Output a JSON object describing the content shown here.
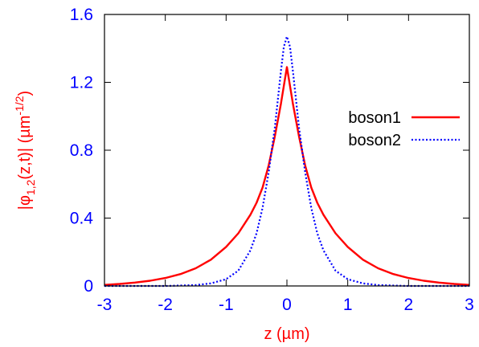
{
  "chart_data": {
    "type": "line",
    "xlabel": "z (µm)",
    "ylabel_main": "|φ",
    "ylabel_sub": "1,2",
    "ylabel_rest": "(z,t)| (µm",
    "ylabel_sup": "-1/2",
    "ylabel_end": ")",
    "xlim": [
      -3,
      3
    ],
    "ylim": [
      0,
      1.6
    ],
    "xticks": [
      -3,
      -2,
      -1,
      0,
      1,
      2,
      3
    ],
    "xtick_labels": [
      "-3",
      "-2",
      "-1",
      "0",
      "1",
      "2",
      "3"
    ],
    "yticks": [
      0,
      0.4,
      0.8,
      1.2,
      1.6
    ],
    "ytick_labels": [
      "0",
      "0.4",
      "0.8",
      "1.2",
      "1.6"
    ],
    "grid": false,
    "legend_position": "right",
    "colors": {
      "tick_text": "#0000ff",
      "axis_text": "#ff0000",
      "frame": "#000000"
    },
    "series": [
      {
        "name": "boson1",
        "color": "#ff0000",
        "style": "solid",
        "x": [
          -3.0,
          -2.75,
          -2.5,
          -2.25,
          -2.0,
          -1.75,
          -1.5,
          -1.25,
          -1.0,
          -0.8,
          -0.6,
          -0.5,
          -0.4,
          -0.3,
          -0.2,
          -0.1,
          -0.05,
          0.0,
          0.05,
          0.1,
          0.2,
          0.3,
          0.4,
          0.5,
          0.6,
          0.8,
          1.0,
          1.25,
          1.5,
          1.75,
          2.0,
          2.25,
          2.5,
          2.75,
          3.0
        ],
        "values": [
          0.006,
          0.012,
          0.02,
          0.031,
          0.047,
          0.07,
          0.104,
          0.155,
          0.23,
          0.31,
          0.42,
          0.49,
          0.58,
          0.71,
          0.88,
          1.07,
          1.18,
          1.29,
          1.18,
          1.07,
          0.88,
          0.71,
          0.58,
          0.49,
          0.42,
          0.31,
          0.23,
          0.155,
          0.104,
          0.07,
          0.047,
          0.031,
          0.02,
          0.012,
          0.006
        ]
      },
      {
        "name": "boson2",
        "color": "#0000ff",
        "style": "dotted",
        "x": [
          -3.0,
          -2.5,
          -2.0,
          -1.5,
          -1.25,
          -1.0,
          -0.8,
          -0.6,
          -0.5,
          -0.4,
          -0.3,
          -0.2,
          -0.1,
          -0.05,
          0.0,
          0.05,
          0.1,
          0.2,
          0.3,
          0.4,
          0.5,
          0.6,
          0.8,
          1.0,
          1.25,
          1.5,
          2.0,
          2.5,
          3.0
        ],
        "values": [
          0.0,
          0.0,
          0.0,
          0.005,
          0.015,
          0.04,
          0.09,
          0.21,
          0.31,
          0.46,
          0.67,
          0.93,
          1.26,
          1.41,
          1.47,
          1.41,
          1.26,
          0.93,
          0.67,
          0.46,
          0.31,
          0.21,
          0.09,
          0.04,
          0.015,
          0.005,
          0.0,
          0.0,
          0.0
        ]
      }
    ]
  }
}
